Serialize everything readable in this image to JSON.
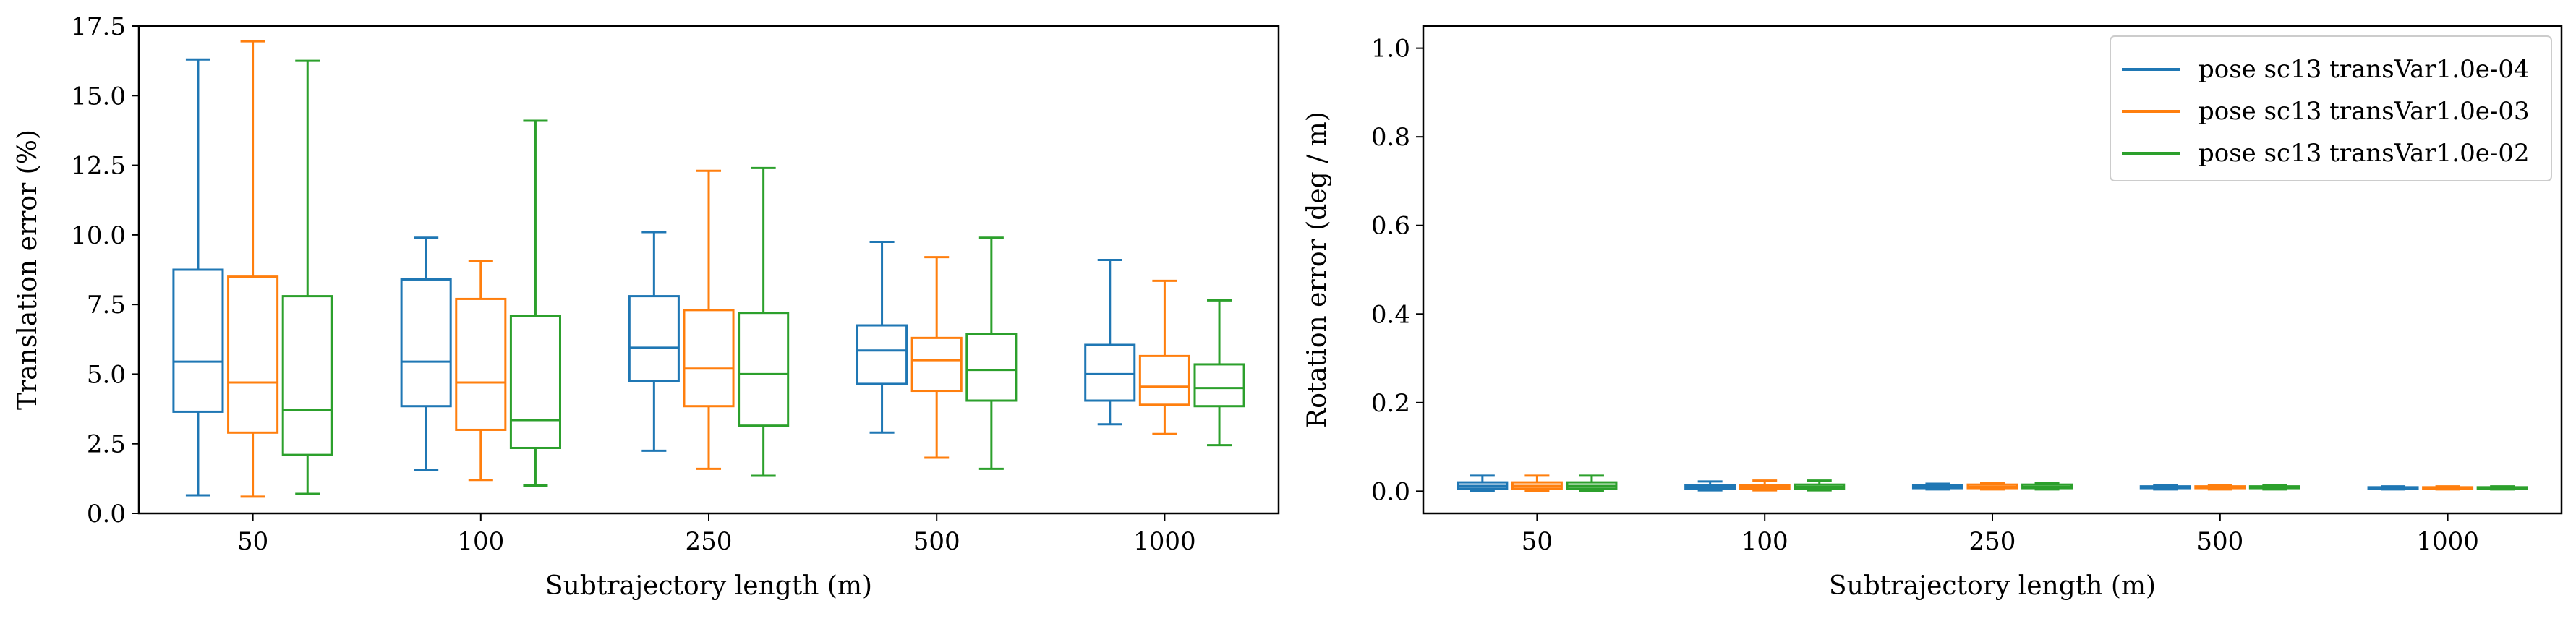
{
  "chart_data": [
    {
      "type": "box",
      "xlabel": "Subtrajectory length (m)",
      "ylabel": "Translation error (%)",
      "ylim": [
        0,
        17.5
      ],
      "yticks": [
        "0.0",
        "2.5",
        "5.0",
        "7.5",
        "10.0",
        "12.5",
        "15.0",
        "17.5"
      ],
      "categories": [
        "50",
        "100",
        "250",
        "500",
        "1000"
      ],
      "series": [
        {
          "name": "pose sc13 transVar1.0e-04",
          "color": "#1f77b4",
          "boxes": [
            {
              "whisker_low": 0.65,
              "q1": 3.65,
              "median": 5.45,
              "q3": 8.75,
              "whisker_high": 16.3
            },
            {
              "whisker_low": 1.55,
              "q1": 3.85,
              "median": 5.45,
              "q3": 8.4,
              "whisker_high": 9.9
            },
            {
              "whisker_low": 2.25,
              "q1": 4.75,
              "median": 5.95,
              "q3": 7.8,
              "whisker_high": 10.1
            },
            {
              "whisker_low": 2.9,
              "q1": 4.65,
              "median": 5.85,
              "q3": 6.75,
              "whisker_high": 9.75
            },
            {
              "whisker_low": 3.2,
              "q1": 4.05,
              "median": 5.0,
              "q3": 6.05,
              "whisker_high": 9.1
            }
          ]
        },
        {
          "name": "pose sc13 transVar1.0e-03",
          "color": "#ff7f0e",
          "boxes": [
            {
              "whisker_low": 0.6,
              "q1": 2.9,
              "median": 4.7,
              "q3": 8.5,
              "whisker_high": 16.95
            },
            {
              "whisker_low": 1.2,
              "q1": 3.0,
              "median": 4.7,
              "q3": 7.7,
              "whisker_high": 9.05
            },
            {
              "whisker_low": 1.6,
              "q1": 3.85,
              "median": 5.2,
              "q3": 7.3,
              "whisker_high": 12.3
            },
            {
              "whisker_low": 2.0,
              "q1": 4.4,
              "median": 5.5,
              "q3": 6.3,
              "whisker_high": 9.2
            },
            {
              "whisker_low": 2.85,
              "q1": 3.9,
              "median": 4.55,
              "q3": 5.65,
              "whisker_high": 8.35
            }
          ]
        },
        {
          "name": "pose sc13 transVar1.0e-02",
          "color": "#2ca02c",
          "boxes": [
            {
              "whisker_low": 0.7,
              "q1": 2.1,
              "median": 3.7,
              "q3": 7.8,
              "whisker_high": 16.25
            },
            {
              "whisker_low": 1.0,
              "q1": 2.35,
              "median": 3.35,
              "q3": 7.1,
              "whisker_high": 14.1
            },
            {
              "whisker_low": 1.35,
              "q1": 3.15,
              "median": 5.0,
              "q3": 7.2,
              "whisker_high": 12.4
            },
            {
              "whisker_low": 1.6,
              "q1": 4.05,
              "median": 5.15,
              "q3": 6.45,
              "whisker_high": 9.9
            },
            {
              "whisker_low": 2.45,
              "q1": 3.85,
              "median": 4.5,
              "q3": 5.35,
              "whisker_high": 7.65
            }
          ]
        }
      ]
    },
    {
      "type": "box",
      "xlabel": "Subtrajectory length (m)",
      "ylabel": "Rotation error (deg / m)",
      "ylim": [
        -0.05,
        1.05
      ],
      "yticks": [
        "0.0",
        "0.2",
        "0.4",
        "0.6",
        "0.8",
        "1.0"
      ],
      "legend_position": "top-right",
      "categories": [
        "50",
        "100",
        "250",
        "500",
        "1000"
      ],
      "series": [
        {
          "name": "pose sc13 transVar1.0e-04",
          "color": "#1f77b4",
          "boxes": [
            {
              "whisker_low": 0.0,
              "q1": 0.006,
              "median": 0.012,
              "q3": 0.02,
              "whisker_high": 0.035
            },
            {
              "whisker_low": 0.002,
              "q1": 0.006,
              "median": 0.01,
              "q3": 0.014,
              "whisker_high": 0.022
            },
            {
              "whisker_low": 0.004,
              "q1": 0.007,
              "median": 0.01,
              "q3": 0.014,
              "whisker_high": 0.017
            },
            {
              "whisker_low": 0.004,
              "q1": 0.007,
              "median": 0.009,
              "q3": 0.011,
              "whisker_high": 0.014
            },
            {
              "whisker_low": 0.004,
              "q1": 0.006,
              "median": 0.007,
              "q3": 0.009,
              "whisker_high": 0.011
            }
          ]
        },
        {
          "name": "pose sc13 transVar1.0e-03",
          "color": "#ff7f0e",
          "boxes": [
            {
              "whisker_low": 0.0,
              "q1": 0.006,
              "median": 0.012,
              "q3": 0.02,
              "whisker_high": 0.035
            },
            {
              "whisker_low": 0.002,
              "q1": 0.006,
              "median": 0.01,
              "q3": 0.014,
              "whisker_high": 0.024
            },
            {
              "whisker_low": 0.004,
              "q1": 0.007,
              "median": 0.01,
              "q3": 0.015,
              "whisker_high": 0.018
            },
            {
              "whisker_low": 0.004,
              "q1": 0.007,
              "median": 0.009,
              "q3": 0.011,
              "whisker_high": 0.014
            },
            {
              "whisker_low": 0.004,
              "q1": 0.006,
              "median": 0.007,
              "q3": 0.009,
              "whisker_high": 0.011
            }
          ]
        },
        {
          "name": "pose sc13 transVar1.0e-02",
          "color": "#2ca02c",
          "boxes": [
            {
              "whisker_low": 0.0,
              "q1": 0.006,
              "median": 0.012,
              "q3": 0.02,
              "whisker_high": 0.035
            },
            {
              "whisker_low": 0.002,
              "q1": 0.006,
              "median": 0.01,
              "q3": 0.015,
              "whisker_high": 0.024
            },
            {
              "whisker_low": 0.004,
              "q1": 0.007,
              "median": 0.01,
              "q3": 0.015,
              "whisker_high": 0.019
            },
            {
              "whisker_low": 0.004,
              "q1": 0.007,
              "median": 0.009,
              "q3": 0.011,
              "whisker_high": 0.014
            },
            {
              "whisker_low": 0.004,
              "q1": 0.006,
              "median": 0.007,
              "q3": 0.009,
              "whisker_high": 0.011
            }
          ]
        }
      ]
    }
  ]
}
